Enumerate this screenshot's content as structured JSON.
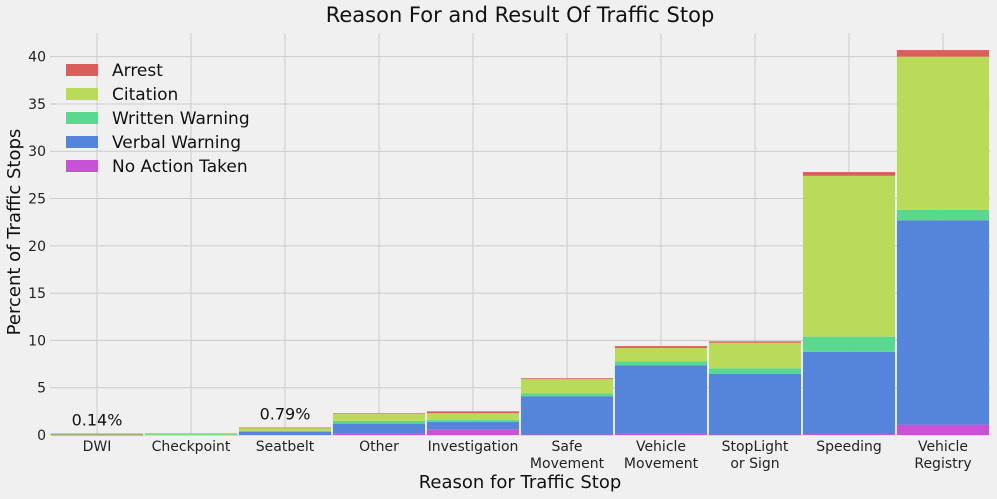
{
  "chart_data": {
    "type": "bar",
    "stacked": true,
    "title": "Reason For and Result Of Traffic Stop",
    "xlabel": "Reason for Traffic Stop",
    "ylabel": "Percent of Traffic Stops",
    "ylim": [
      0,
      42.5
    ],
    "yticks": [
      0,
      5,
      10,
      15,
      20,
      25,
      30,
      35,
      40
    ],
    "grid": true,
    "legend_position": "top-left",
    "categories": [
      [
        "DWI"
      ],
      [
        "Checkpoint"
      ],
      [
        "Seatbelt"
      ],
      [
        "Other"
      ],
      [
        "Investigation"
      ],
      [
        "Safe",
        "Movement"
      ],
      [
        "Vehicle",
        "Movement"
      ],
      [
        "StopLight",
        "or Sign"
      ],
      [
        "Speeding"
      ],
      [
        "Vehicle",
        "Registry"
      ]
    ],
    "series": [
      {
        "name": "No Action Taken",
        "color": "#c752d6",
        "values": [
          0.01,
          0.0,
          0.0,
          0.15,
          0.6,
          0.05,
          0.15,
          0.05,
          0.1,
          1.1
        ]
      },
      {
        "name": "Verbal Warning",
        "color": "#5585db",
        "values": [
          0.03,
          0.05,
          0.35,
          1.05,
          0.8,
          4.05,
          7.2,
          6.4,
          8.7,
          21.6
        ]
      },
      {
        "name": "Written Warning",
        "color": "#5ad890",
        "values": [
          0.01,
          0.02,
          0.1,
          0.3,
          0.2,
          0.3,
          0.45,
          0.6,
          1.6,
          1.1
        ]
      },
      {
        "name": "Citation",
        "color": "#bada5a",
        "values": [
          0.08,
          0.15,
          0.3,
          0.75,
          0.7,
          1.5,
          1.4,
          2.7,
          17.0,
          16.2
        ]
      },
      {
        "name": "Arrest",
        "color": "#d9605a",
        "values": [
          0.01,
          0.0,
          0.04,
          0.05,
          0.2,
          0.1,
          0.2,
          0.15,
          0.4,
          0.7
        ]
      }
    ],
    "legend_order": [
      "Arrest",
      "Citation",
      "Written Warning",
      "Verbal Warning",
      "No Action Taken"
    ],
    "annotations": [
      {
        "category_index": 0,
        "text": "0.14%"
      },
      {
        "category_index": 2,
        "text": "0.79%"
      }
    ]
  }
}
